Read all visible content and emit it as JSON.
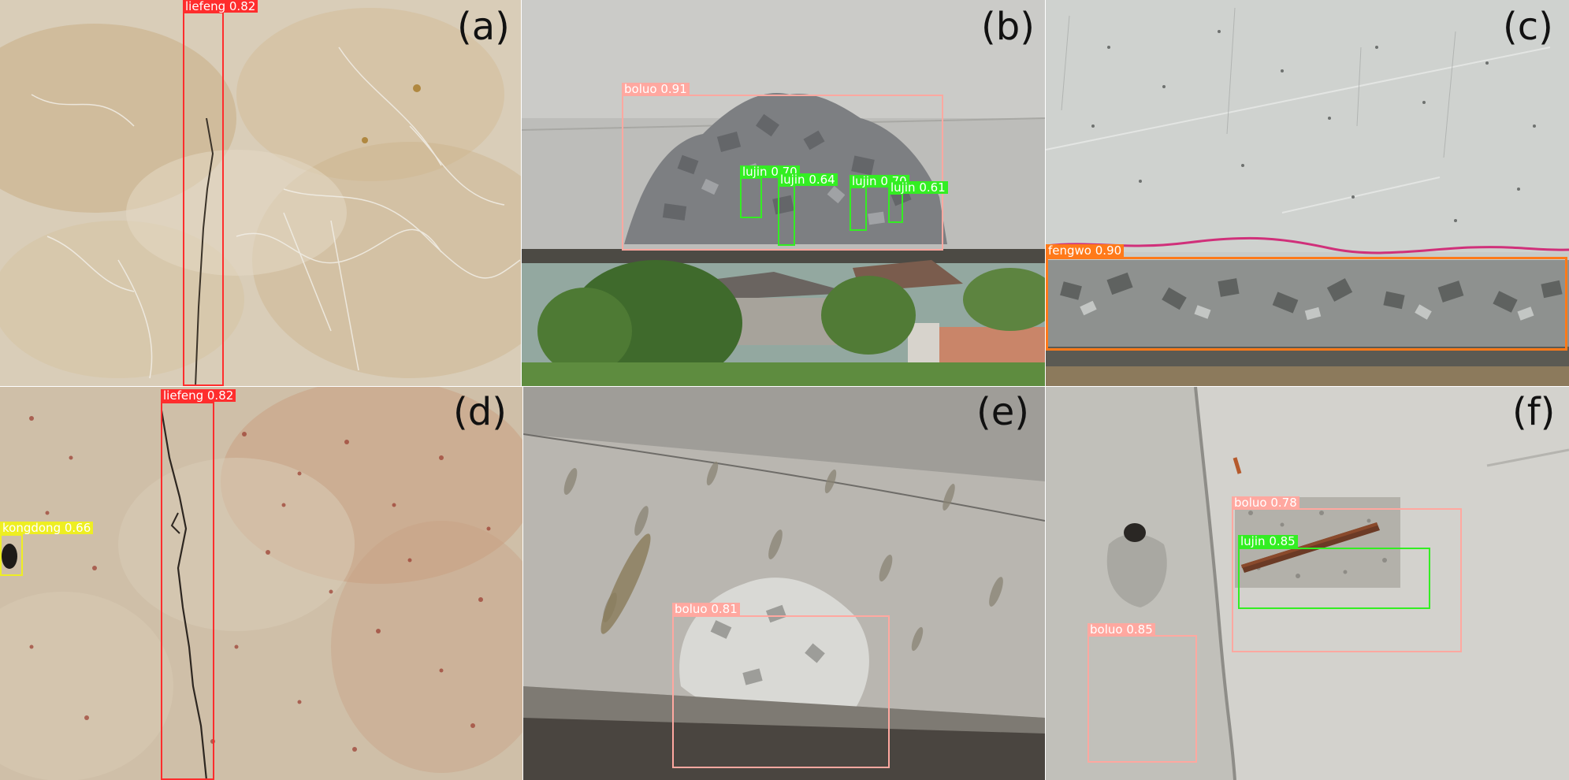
{
  "figure": {
    "panels": [
      {
        "label": "(a)",
        "scene": "marble-like concrete surface with vertical hairline crack",
        "detections": [
          {
            "class": "liefeng",
            "score": "0.82",
            "color": "#ff2d2d"
          }
        ]
      },
      {
        "label": "(b)",
        "scene": "spalled concrete beam underside with exposed rebar, village and trees below",
        "detections": [
          {
            "class": "boluo",
            "score": "0.91",
            "color": "#ffa8a0"
          },
          {
            "class": "lujin",
            "score": "0.70",
            "color": "#33ee22"
          },
          {
            "class": "lujin",
            "score": "0.64",
            "color": "#33ee22"
          },
          {
            "class": "lujin",
            "score": "0.70",
            "color": "#33ee22"
          },
          {
            "class": "lujin",
            "score": "0.61",
            "color": "#33ee22"
          }
        ]
      },
      {
        "label": "(c)",
        "scene": "concrete wall with honeycomb band along the bottom edge",
        "detections": [
          {
            "class": "fengwo",
            "score": "0.90",
            "color": "#ff7a1a"
          }
        ]
      },
      {
        "label": "(d)",
        "scene": "rust-speckled concrete with vertical crack and small cavity",
        "detections": [
          {
            "class": "liefeng",
            "score": "0.82",
            "color": "#ff2d2d"
          },
          {
            "class": "kongdong",
            "score": "0.66",
            "color": "#eeee22"
          }
        ]
      },
      {
        "label": "(e)",
        "scene": "stained concrete wall underside with spalled patch near floor",
        "detections": [
          {
            "class": "boluo",
            "score": "0.81",
            "color": "#ffa8a0"
          }
        ]
      },
      {
        "label": "(f)",
        "scene": "concrete slab with exposed rusty rebar and spalled hole",
        "detections": [
          {
            "class": "boluo",
            "score": "0.78",
            "color": "#ffa8a0"
          },
          {
            "class": "lujin",
            "score": "0.85",
            "color": "#33ee22"
          },
          {
            "class": "boluo",
            "score": "0.85",
            "color": "#ffa8a0"
          }
        ]
      }
    ]
  }
}
